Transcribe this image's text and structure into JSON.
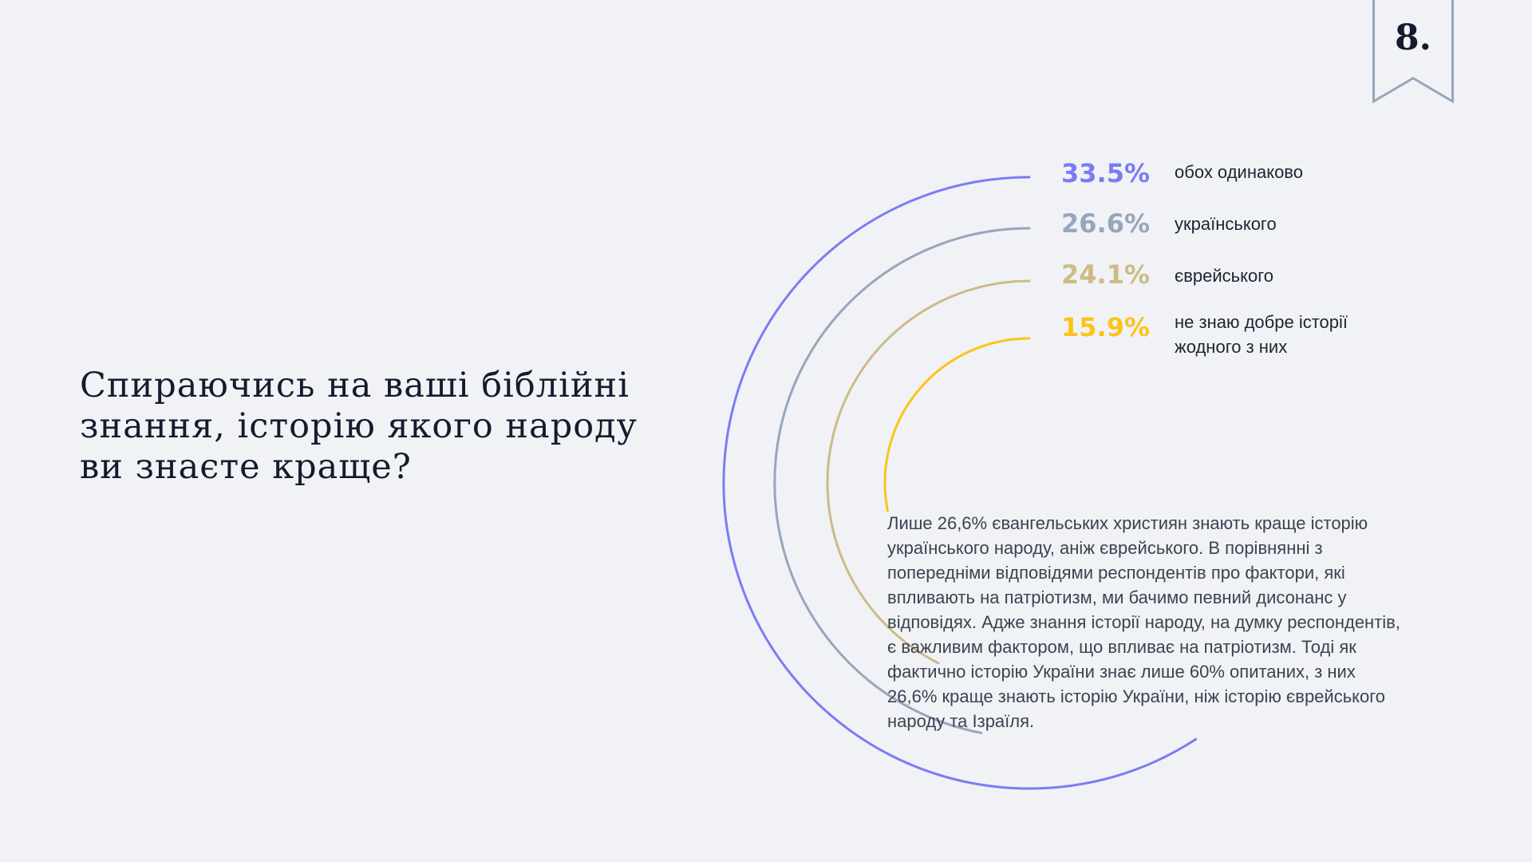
{
  "page": {
    "number": "8."
  },
  "question": "Спираючись на ваші біблійні знання, історію якого народу ви знаєте краще?",
  "description": "Лише 26,6% євангельських християн знають краще історію українського народу, аніж єврейського. В порівнянні з попередніми відповідями респондентів про фактори, які впливають на патріотизм, ми бачимо певний дисонанс у відповідях. Адже знання історії народу, на думку респондентів, є важливим фактором, що впливає на патріотизм. Тоді як фактично історію України знає лише 60% опитаних, з них 26,6% краще знають історію України, ніж історію єврейського народу та Ізраїля.",
  "colors": {
    "background": "#f0f2f6",
    "badge_stroke": "#97a6bb"
  },
  "chart_data": {
    "type": "radial-bar",
    "unit": "%",
    "series": [
      {
        "label": "обох одинаково",
        "value": 33.5,
        "display": "33.5%",
        "color": "#7b7cf2"
      },
      {
        "label": "українського",
        "value": 26.6,
        "display": "26.6%",
        "color": "#97a6bb"
      },
      {
        "label": "єврейського",
        "value": 24.1,
        "display": "24.1%",
        "color": "#cdbb86"
      },
      {
        "label": "не знаю добре історії жодного з них",
        "value": 15.9,
        "display": "15.9%",
        "color": "#fcc419"
      }
    ]
  }
}
